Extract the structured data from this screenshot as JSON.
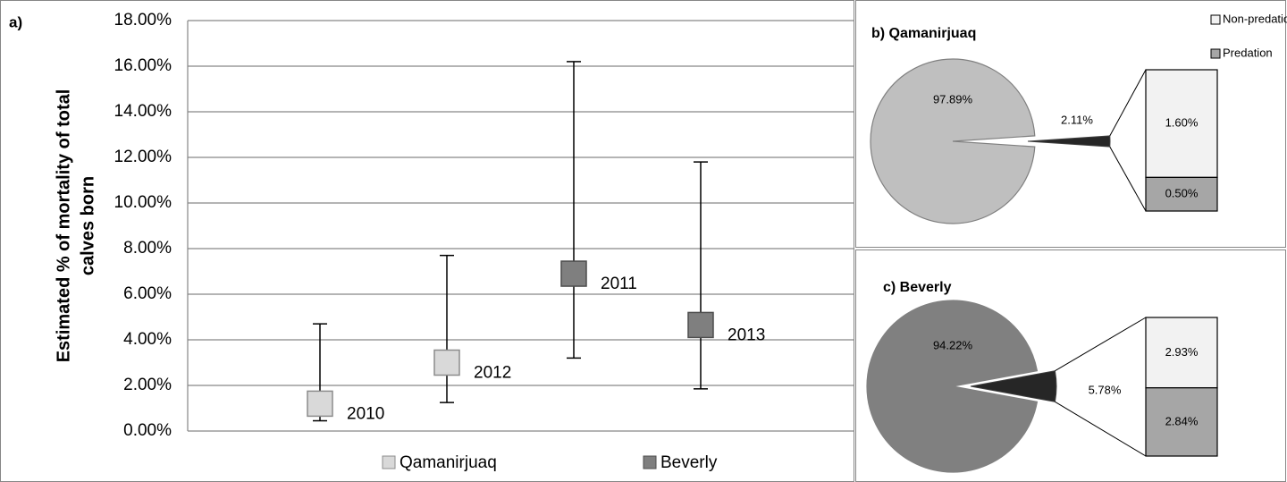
{
  "chart_data": [
    {
      "type": "errorbar",
      "title": "a)",
      "ylabel": [
        "Estimated % of mortality of total",
        "calves  born"
      ],
      "categories": [
        "2010",
        "2012",
        "2011",
        "2013"
      ],
      "series": [
        {
          "name": "Qamanirjuaq",
          "color": "#d9d9d9",
          "edge": "#8c8c8c",
          "values": [
            1.2,
            3.0,
            null,
            null
          ],
          "low": [
            0.45,
            1.25,
            null,
            null
          ],
          "high": [
            4.7,
            7.7,
            null,
            null
          ]
        },
        {
          "name": "Beverly",
          "color": "#7f7f7f",
          "edge": "#4d4d4d",
          "values": [
            null,
            null,
            6.9,
            4.65
          ],
          "low": [
            null,
            null,
            3.2,
            1.85
          ],
          "high": [
            null,
            null,
            16.2,
            11.8
          ]
        }
      ],
      "ylim": [
        0,
        18
      ],
      "yticks": [
        {
          "value": 0,
          "label": "0.00%"
        },
        {
          "value": 2,
          "label": "2.00%"
        },
        {
          "value": 4,
          "label": "4.00%"
        },
        {
          "value": 6,
          "label": "6.00%"
        },
        {
          "value": 8,
          "label": "8.00%"
        },
        {
          "value": 10,
          "label": "10.00%"
        },
        {
          "value": 12,
          "label": "12.00%"
        },
        {
          "value": 14,
          "label": "14.00%"
        },
        {
          "value": 16,
          "label": "16.00%"
        },
        {
          "value": 18,
          "label": "18.00%"
        }
      ],
      "grid": true
    },
    {
      "type": "pie",
      "title": "b) Qamanirjuaq",
      "values": [
        97.89,
        2.11
      ],
      "value_labels": [
        "97.89%",
        "2.11%"
      ],
      "colors": [
        "#bfbfbf",
        "#262626"
      ],
      "breakdown_values": [
        1.6,
        0.5
      ],
      "breakdown_labels": [
        "1.60%",
        "0.50%"
      ],
      "breakdown_colors": [
        "#f2f2f2",
        "#a6a6a6"
      ],
      "legend": [
        "Non-predation",
        "Predation"
      ]
    },
    {
      "type": "pie",
      "title": "c) Beverly",
      "values": [
        94.22,
        5.78
      ],
      "value_labels": [
        "94.22%",
        "5.78%"
      ],
      "colors": [
        "#808080",
        "#262626"
      ],
      "breakdown_values": [
        2.93,
        2.84
      ],
      "breakdown_labels": [
        "2.93%",
        "2.84%"
      ],
      "breakdown_colors": [
        "#f2f2f2",
        "#a6a6a6"
      ]
    }
  ]
}
